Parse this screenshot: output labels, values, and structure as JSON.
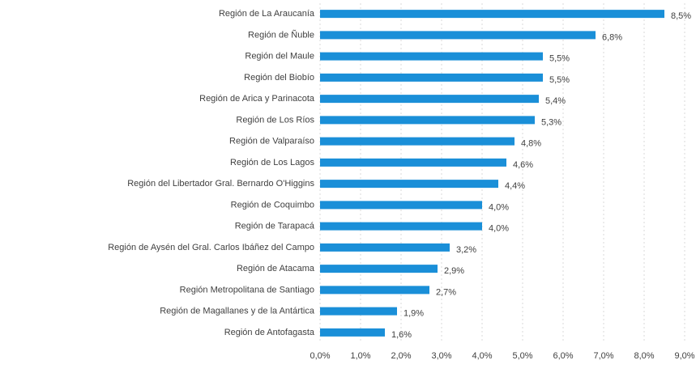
{
  "chart_data": {
    "type": "bar",
    "orientation": "horizontal",
    "categories": [
      "Región de La Araucanía",
      "Región de Ñuble",
      "Región del Maule",
      "Región del Biobío",
      "Región de Arica y Parinacota",
      "Región de Los Ríos",
      "Región de Valparaíso",
      "Región de Los Lagos",
      "Región del Libertador Gral. Bernardo O'Higgins",
      "Región de Coquimbo",
      "Región de Tarapacá",
      "Región de Aysén del Gral. Carlos Ibáñez del Campo",
      "Región de Atacama",
      "Región Metropolitana de Santiago",
      "Región de Magallanes y de la Antártica",
      "Región de Antofagasta"
    ],
    "values": [
      8.5,
      6.8,
      5.5,
      5.5,
      5.4,
      5.3,
      4.8,
      4.6,
      4.4,
      4.0,
      4.0,
      3.2,
      2.9,
      2.7,
      1.9,
      1.6
    ],
    "value_labels": [
      "8,5%",
      "6,8%",
      "5,5%",
      "5,5%",
      "5,4%",
      "5,3%",
      "4,8%",
      "4,6%",
      "4,4%",
      "4,0%",
      "4,0%",
      "3,2%",
      "2,9%",
      "2,7%",
      "1,9%",
      "1,6%"
    ],
    "color": "#1a8fd8",
    "xlim": [
      0,
      9
    ],
    "xticks": [
      {
        "value": 0,
        "label": "0,0%"
      },
      {
        "value": 1,
        "label": "1,0%"
      },
      {
        "value": 2,
        "label": "2,0%"
      },
      {
        "value": 3,
        "label": "3,0%"
      },
      {
        "value": 4,
        "label": "4,0%"
      },
      {
        "value": 5,
        "label": "5,0%"
      },
      {
        "value": 6,
        "label": "6,0%"
      },
      {
        "value": 7,
        "label": "7,0%"
      },
      {
        "value": 8,
        "label": "8,0%"
      },
      {
        "value": 9,
        "label": "9,0%"
      }
    ],
    "grid": true
  }
}
